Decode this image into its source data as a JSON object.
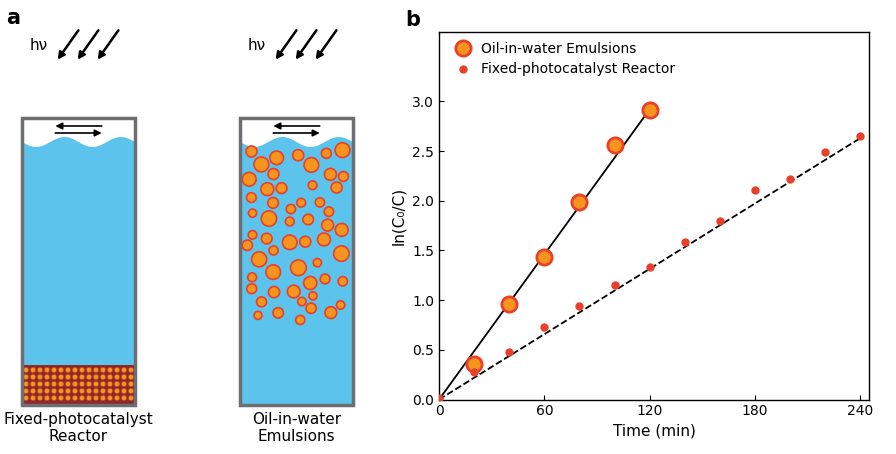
{
  "panel_labels": [
    "a",
    "b"
  ],
  "diagram": {
    "light_label": "hν",
    "reactors": [
      {
        "label": "Fixed-photocatalyst\nReactor"
      },
      {
        "label": "Oil-in-water\nEmulsions"
      }
    ]
  },
  "chart_data": {
    "type": "scatter",
    "x_label": "Time (min)",
    "y_label": "ln(C₀/C)",
    "xlim": [
      0,
      245
    ],
    "xticks": [
      0,
      60,
      120,
      180,
      240
    ],
    "ylim": [
      0,
      3.7
    ],
    "yticks": [
      {
        "value": 0,
        "label": "0.0"
      },
      {
        "value": 0.5,
        "label": "0.5"
      },
      {
        "value": 1,
        "label": "1.0"
      },
      {
        "value": 1.5,
        "label": "1.5"
      },
      {
        "value": 2,
        "label": "2.0"
      },
      {
        "value": 2.5,
        "label": "2.5"
      },
      {
        "value": 3,
        "label": "3.0"
      }
    ],
    "legend": "upper left",
    "series": [
      {
        "name": "Oil-in-water Emulsions",
        "type": "scatter",
        "marker": "circle",
        "color": "#e8402a",
        "x": [
          20,
          40,
          60,
          80,
          100,
          120
        ],
        "values": [
          0.36,
          0.96,
          1.43,
          1.99,
          2.56,
          2.91
        ]
      },
      {
        "name": "Fixed-photocatalyst Reactor",
        "type": "scatter",
        "marker": "dot",
        "color": "#e8402a",
        "x": [
          0,
          20,
          40,
          60,
          80,
          100,
          120,
          140,
          160,
          180,
          200,
          220,
          240
        ],
        "values": [
          0.02,
          0.28,
          0.48,
          0.73,
          0.94,
          1.15,
          1.33,
          1.58,
          1.8,
          2.11,
          2.22,
          2.49,
          2.65
        ]
      },
      {
        "type": "line",
        "line_style": "solid",
        "color": "#000000",
        "x": [
          0,
          120
        ],
        "values": [
          0,
          2.92
        ]
      },
      {
        "type": "line",
        "line_style": "dashed",
        "color": "#000000",
        "x": [
          0,
          240
        ],
        "values": [
          0,
          2.63
        ]
      }
    ]
  }
}
